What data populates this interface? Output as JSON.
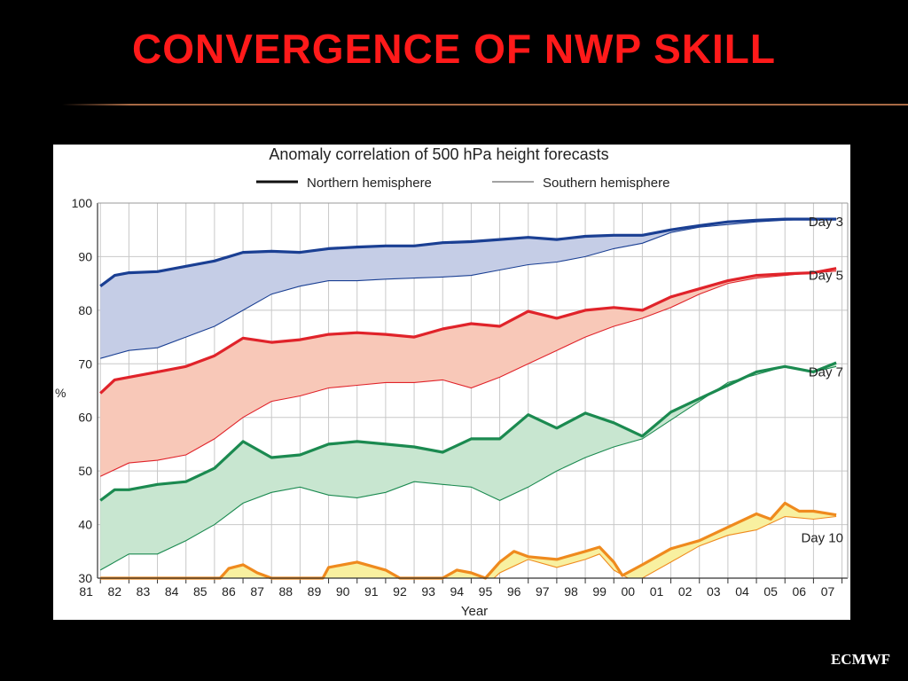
{
  "slide": {
    "title": "CONVERGENCE OF NWP SKILL",
    "footer": "ECMWF"
  },
  "chart_data": {
    "type": "area",
    "title": "Anomaly correlation of 500 hPa height forecasts",
    "xlabel": "Year",
    "ylabel": "%",
    "ylim": [
      30,
      100
    ],
    "xlim": [
      1980.9,
      2007.2
    ],
    "yticks": [
      30,
      40,
      50,
      60,
      70,
      80,
      90,
      100
    ],
    "xtick_labels": [
      "81",
      "82",
      "83",
      "84",
      "85",
      "86",
      "87",
      "88",
      "89",
      "90",
      "91",
      "92",
      "93",
      "94",
      "95",
      "96",
      "97",
      "98",
      "99",
      "00",
      "01",
      "02",
      "03",
      "04",
      "05",
      "06",
      "07"
    ],
    "xtick_years": [
      1981,
      1982,
      1983,
      1984,
      1985,
      1986,
      1987,
      1988,
      1989,
      1990,
      1991,
      1992,
      1993,
      1994,
      1995,
      1996,
      1997,
      1998,
      1999,
      2000,
      2001,
      2002,
      2003,
      2004,
      2005,
      2006,
      2007
    ],
    "grid": true,
    "legend": {
      "placement": "top",
      "entries": [
        {
          "label": "Northern hemisphere",
          "style": "thick"
        },
        {
          "label": "Southern hemisphere",
          "style": "thin"
        }
      ]
    },
    "groups": [
      {
        "name": "Day 3",
        "label_value": 96.5,
        "line_color": "#1a3f93",
        "fill_color": "#c5cde6",
        "nh": [
          [
            1981,
            84.5
          ],
          [
            1981.5,
            86.5
          ],
          [
            1982,
            87
          ],
          [
            1983,
            87.2
          ],
          [
            1984,
            88.2
          ],
          [
            1985,
            89.2
          ],
          [
            1986,
            90.8
          ],
          [
            1987,
            91
          ],
          [
            1988,
            90.8
          ],
          [
            1989,
            91.5
          ],
          [
            1990,
            91.8
          ],
          [
            1991,
            92
          ],
          [
            1992,
            92
          ],
          [
            1993,
            92.6
          ],
          [
            1994,
            92.8
          ],
          [
            1995,
            93.2
          ],
          [
            1996,
            93.6
          ],
          [
            1997,
            93.2
          ],
          [
            1998,
            93.8
          ],
          [
            1999,
            94
          ],
          [
            2000,
            94
          ],
          [
            2001,
            95
          ],
          [
            2002,
            95.8
          ],
          [
            2003,
            96.5
          ],
          [
            2004,
            96.8
          ],
          [
            2005,
            97
          ],
          [
            2006,
            97
          ],
          [
            2006.8,
            97
          ]
        ],
        "sh": [
          [
            1981,
            71
          ],
          [
            1982,
            72.5
          ],
          [
            1983,
            73
          ],
          [
            1984,
            75
          ],
          [
            1985,
            77
          ],
          [
            1986,
            80
          ],
          [
            1987,
            83
          ],
          [
            1988,
            84.5
          ],
          [
            1989,
            85.5
          ],
          [
            1990,
            85.5
          ],
          [
            1991,
            85.8
          ],
          [
            1992,
            86
          ],
          [
            1993,
            86.2
          ],
          [
            1994,
            86.5
          ],
          [
            1995,
            87.5
          ],
          [
            1996,
            88.5
          ],
          [
            1997,
            89
          ],
          [
            1998,
            90
          ],
          [
            1999,
            91.5
          ],
          [
            2000,
            92.5
          ],
          [
            2001,
            94.5
          ],
          [
            2002,
            95.5
          ],
          [
            2003,
            96
          ],
          [
            2004,
            96.5
          ],
          [
            2005,
            96.8
          ],
          [
            2006,
            97
          ],
          [
            2006.8,
            97
          ]
        ]
      },
      {
        "name": "Day 5",
        "label_value": 86.5,
        "line_color": "#e0232a",
        "fill_color": "#f8c8b8",
        "nh": [
          [
            1981,
            64.5
          ],
          [
            1981.5,
            67
          ],
          [
            1982,
            67.5
          ],
          [
            1983,
            68.5
          ],
          [
            1984,
            69.5
          ],
          [
            1985,
            71.5
          ],
          [
            1986,
            74.8
          ],
          [
            1987,
            74
          ],
          [
            1988,
            74.5
          ],
          [
            1989,
            75.5
          ],
          [
            1990,
            75.8
          ],
          [
            1991,
            75.5
          ],
          [
            1992,
            75
          ],
          [
            1993,
            76.5
          ],
          [
            1994,
            77.5
          ],
          [
            1995,
            77
          ],
          [
            1996,
            79.8
          ],
          [
            1997,
            78.5
          ],
          [
            1998,
            80
          ],
          [
            1999,
            80.5
          ],
          [
            2000,
            80
          ],
          [
            2001,
            82.5
          ],
          [
            2002,
            84
          ],
          [
            2003,
            85.5
          ],
          [
            2004,
            86.5
          ],
          [
            2005,
            86.8
          ],
          [
            2006,
            87
          ],
          [
            2006.8,
            87.8
          ]
        ],
        "sh": [
          [
            1981,
            49
          ],
          [
            1982,
            51.5
          ],
          [
            1983,
            52
          ],
          [
            1984,
            53
          ],
          [
            1985,
            56
          ],
          [
            1986,
            60
          ],
          [
            1987,
            63
          ],
          [
            1988,
            64
          ],
          [
            1989,
            65.5
          ],
          [
            1990,
            66
          ],
          [
            1991,
            66.5
          ],
          [
            1992,
            66.5
          ],
          [
            1993,
            67
          ],
          [
            1994,
            65.5
          ],
          [
            1995,
            67.5
          ],
          [
            1996,
            70
          ],
          [
            1997,
            72.5
          ],
          [
            1998,
            75
          ],
          [
            1999,
            77
          ],
          [
            2000,
            78.5
          ],
          [
            2001,
            80.5
          ],
          [
            2002,
            83
          ],
          [
            2003,
            85
          ],
          [
            2004,
            86
          ],
          [
            2005,
            86.5
          ],
          [
            2006,
            87
          ],
          [
            2006.8,
            87.3
          ]
        ]
      },
      {
        "name": "Day 7",
        "label_value": 68.5,
        "line_color": "#1b8a50",
        "fill_color": "#c8e6d0",
        "nh": [
          [
            1981,
            44.5
          ],
          [
            1981.5,
            46.5
          ],
          [
            1982,
            46.5
          ],
          [
            1983,
            47.5
          ],
          [
            1984,
            48
          ],
          [
            1985,
            50.5
          ],
          [
            1986,
            55.5
          ],
          [
            1987,
            52.5
          ],
          [
            1988,
            53
          ],
          [
            1989,
            55
          ],
          [
            1990,
            55.5
          ],
          [
            1991,
            55
          ],
          [
            1992,
            54.5
          ],
          [
            1993,
            53.5
          ],
          [
            1994,
            56
          ],
          [
            1995,
            56
          ],
          [
            1996,
            60.5
          ],
          [
            1997,
            58
          ],
          [
            1998,
            60.8
          ],
          [
            1999,
            59
          ],
          [
            2000,
            56.5
          ],
          [
            2001,
            61
          ],
          [
            2002,
            63.5
          ],
          [
            2003,
            66
          ],
          [
            2004,
            68.5
          ],
          [
            2005,
            69.5
          ],
          [
            2006,
            68.5
          ],
          [
            2006.8,
            70.2
          ]
        ],
        "sh": [
          [
            1981,
            31.5
          ],
          [
            1982,
            34.5
          ],
          [
            1983,
            34.5
          ],
          [
            1984,
            37
          ],
          [
            1985,
            40
          ],
          [
            1986,
            44
          ],
          [
            1987,
            46
          ],
          [
            1988,
            47
          ],
          [
            1989,
            45.5
          ],
          [
            1990,
            45
          ],
          [
            1991,
            46
          ],
          [
            1992,
            48
          ],
          [
            1993,
            47.5
          ],
          [
            1994,
            47
          ],
          [
            1995,
            44.5
          ],
          [
            1996,
            47
          ],
          [
            1997,
            50
          ],
          [
            1998,
            52.5
          ],
          [
            1999,
            54.5
          ],
          [
            2000,
            56
          ],
          [
            2001,
            59.5
          ],
          [
            2002,
            63
          ],
          [
            2003,
            66.5
          ],
          [
            2004,
            68
          ],
          [
            2005,
            69.5
          ],
          [
            2006,
            68.5
          ],
          [
            2006.8,
            69.5
          ]
        ]
      },
      {
        "name": "Day 10",
        "label_value": 37.5,
        "line_color": "#ef8a1e",
        "fill_color": "#f8f0a0",
        "nh": [
          [
            1981,
            30
          ],
          [
            1985.2,
            30
          ],
          [
            1985.5,
            31.8
          ],
          [
            1986,
            32.5
          ],
          [
            1986.5,
            31
          ],
          [
            1987,
            30
          ],
          [
            1988.8,
            30
          ],
          [
            1989,
            32
          ],
          [
            1990,
            33
          ],
          [
            1991,
            31.5
          ],
          [
            1991.5,
            30
          ],
          [
            1993,
            30
          ],
          [
            1993.5,
            31.5
          ],
          [
            1994,
            31
          ],
          [
            1994.5,
            30
          ],
          [
            1995,
            33
          ],
          [
            1995.5,
            35
          ],
          [
            1996,
            34
          ],
          [
            1997,
            33.5
          ],
          [
            1998,
            35
          ],
          [
            1998.5,
            35.8
          ],
          [
            1999,
            33
          ],
          [
            1999.3,
            30.5
          ],
          [
            2000,
            32.5
          ],
          [
            2001,
            35.5
          ],
          [
            2002,
            37
          ],
          [
            2003,
            39.5
          ],
          [
            2004,
            42
          ],
          [
            2004.5,
            41
          ],
          [
            2005,
            44
          ],
          [
            2005.5,
            42.5
          ],
          [
            2006,
            42.5
          ],
          [
            2006.8,
            41.8
          ]
        ],
        "sh": [
          [
            1981,
            30
          ],
          [
            1994.8,
            30
          ],
          [
            1995,
            31
          ],
          [
            1996,
            33.5
          ],
          [
            1997,
            32
          ],
          [
            1998,
            33.5
          ],
          [
            1998.5,
            34.5
          ],
          [
            1999,
            31.5
          ],
          [
            1999.5,
            30
          ],
          [
            2000,
            30
          ],
          [
            2001,
            33
          ],
          [
            2002,
            36
          ],
          [
            2003,
            38
          ],
          [
            2004,
            39
          ],
          [
            2005,
            41.5
          ],
          [
            2006,
            41
          ],
          [
            2006.8,
            41.5
          ]
        ]
      }
    ]
  }
}
